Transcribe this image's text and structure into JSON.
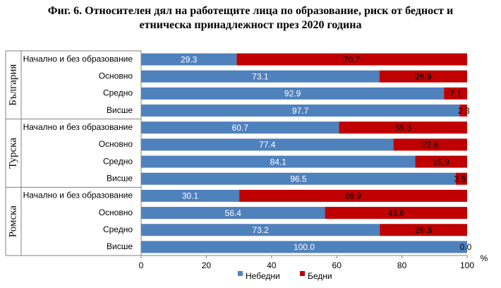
{
  "title_line1": "Фиг. 6. Относителен дял на работещите лица по образование, риск от бедност и",
  "title_line2": "етническа принадлежност през 2020 година",
  "colors": {
    "not_poor": "#4F81BD",
    "poor": "#C00000"
  },
  "chart_data": {
    "type": "bar",
    "orientation": "horizontal",
    "stacked": true,
    "title": "Фиг. 6. Относителен дял на работещите лица по образование, риск от бедност и етническа принадлежност през 2020 година",
    "xunit": "%",
    "xlim": [
      0,
      100
    ],
    "xticks": [
      "0",
      "20",
      "40",
      "60",
      "80",
      "100"
    ],
    "legend_position": "bottom",
    "groups": [
      {
        "name": "България",
        "categories": [
          "Начално и без образование",
          "Основно",
          "Средно",
          "Висше"
        ],
        "not_poor": [
          "29.3",
          "73.1",
          "92.9",
          "97.7"
        ],
        "poor": [
          "70.7",
          "26.9",
          "7.1",
          "2.3"
        ]
      },
      {
        "name": "Турска",
        "categories": [
          "Начално и без образование",
          "Основно",
          "Средно",
          "Висше"
        ],
        "not_poor": [
          "60.7",
          "77.4",
          "84.1",
          "96.5"
        ],
        "poor": [
          "39.3",
          "22.6",
          "15.9",
          "3.5"
        ]
      },
      {
        "name": "Ромска",
        "categories": [
          "Начално и без образование",
          "Основно",
          "Средно",
          "Висше"
        ],
        "not_poor": [
          "30.1",
          "56.4",
          "73.2",
          "100.0"
        ],
        "poor": [
          "69.9",
          "43.6",
          "26.8",
          "0.0"
        ]
      }
    ],
    "series_names": [
      "Небедни",
      "Бедни"
    ]
  }
}
